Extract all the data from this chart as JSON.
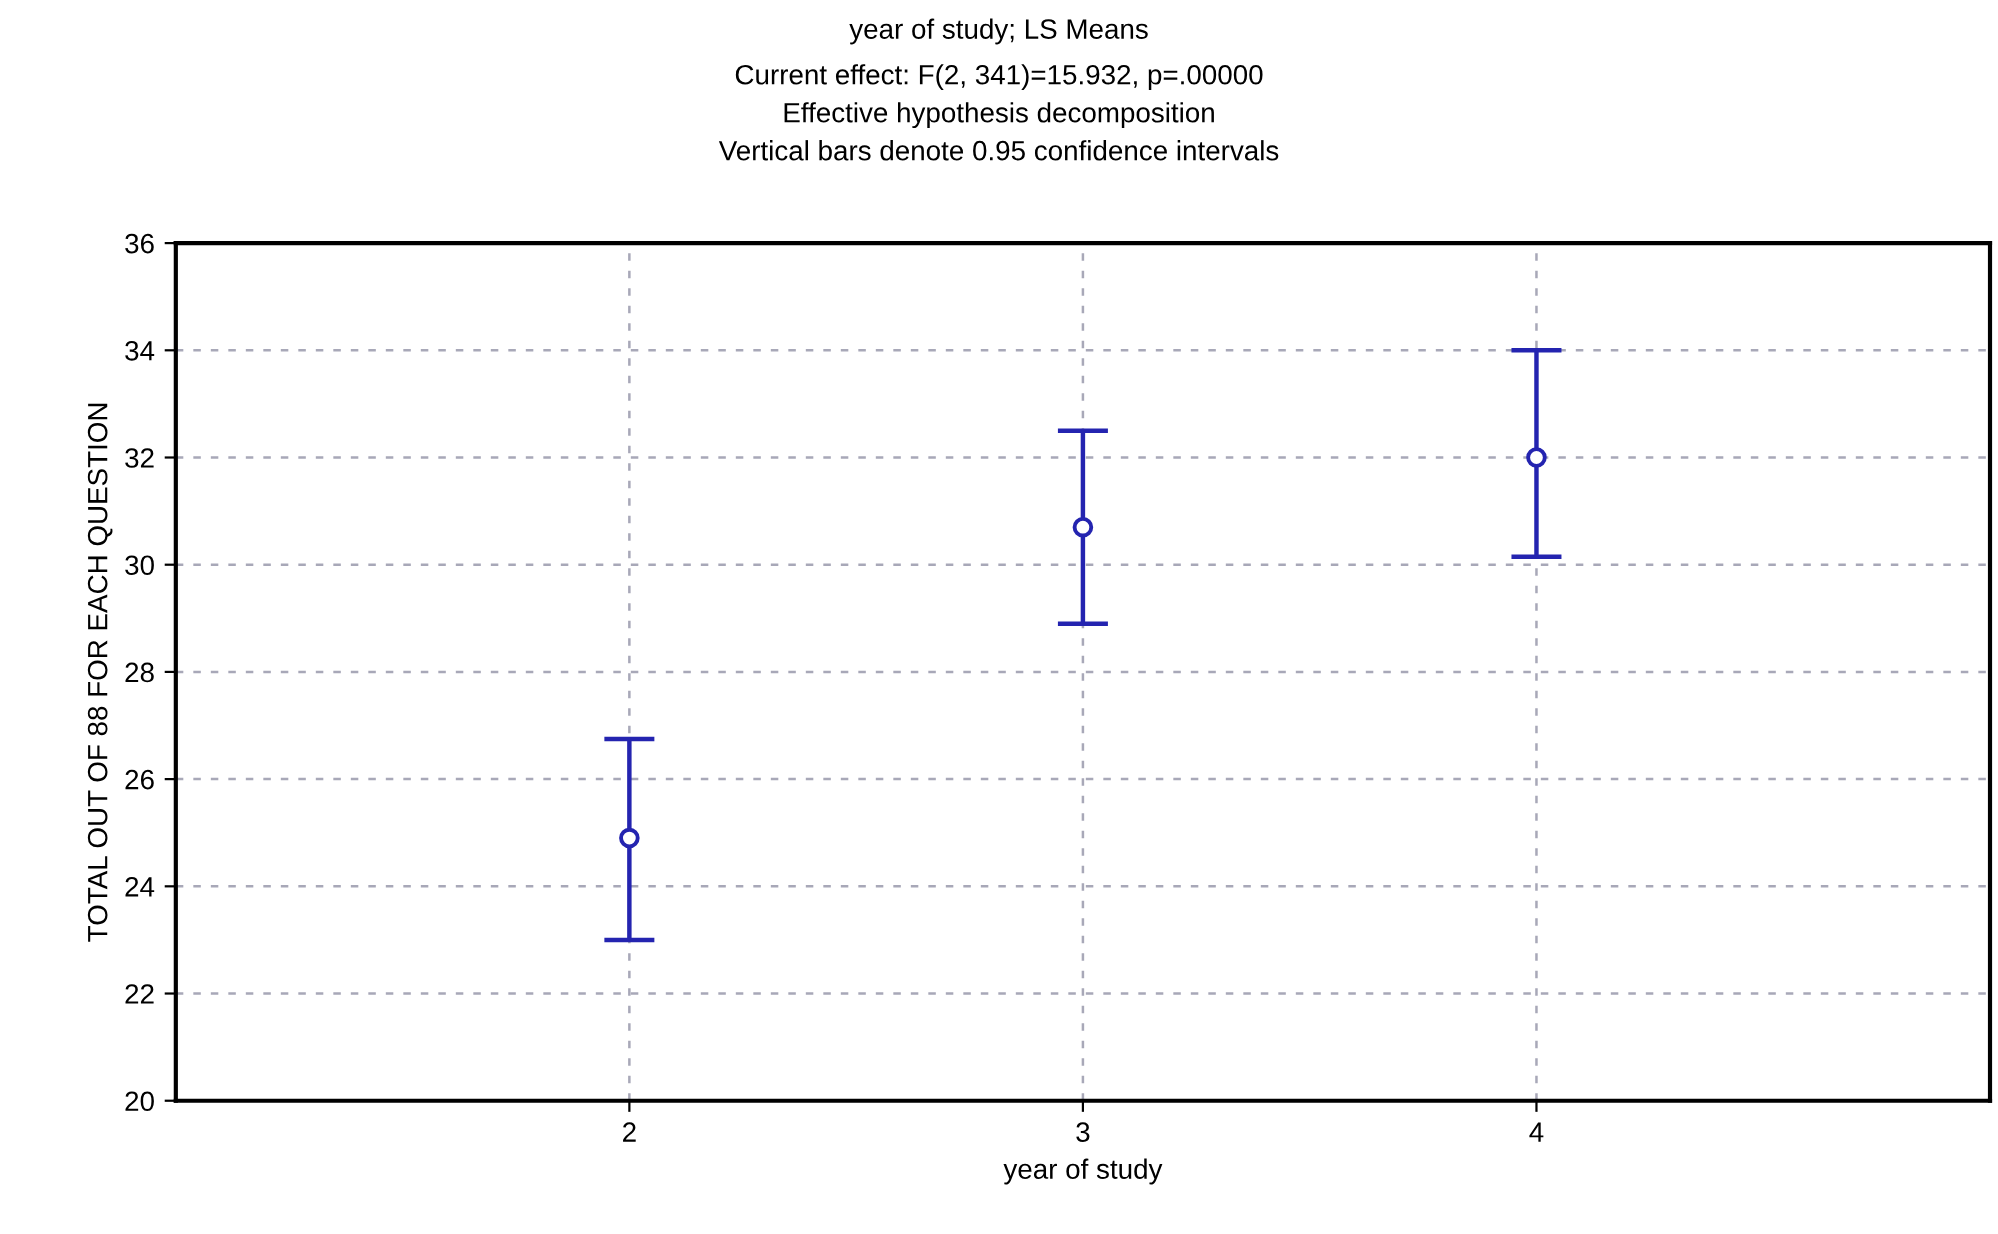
{
  "chart_data": {
    "type": "scatter",
    "title": "year of study; LS Means",
    "subtitle": "Current effect: F(2, 341)=15.932, p=.00000\nEffective hypothesis decomposition\nVertical bars denote 0.95 confidence intervals",
    "xlabel": "year of study",
    "ylabel": "TOTAL OUT OF 88 FOR EACH QUESTION",
    "x": [
      2,
      3,
      4
    ],
    "series": [
      {
        "color": "#2424b0",
        "values": [
          24.9,
          30.7,
          32.0
        ],
        "errors": [
          [
            23.0,
            26.75
          ],
          [
            28.9,
            32.5
          ],
          [
            30.15,
            34.0
          ]
        ]
      }
    ],
    "xlim": [
      1,
      5
    ],
    "xticks": [
      2,
      3,
      4
    ],
    "ylim": [
      20,
      36
    ],
    "yticks": [
      20,
      22,
      24,
      26,
      28,
      30,
      32,
      34,
      36
    ],
    "grid": true,
    "marker": "circle"
  }
}
